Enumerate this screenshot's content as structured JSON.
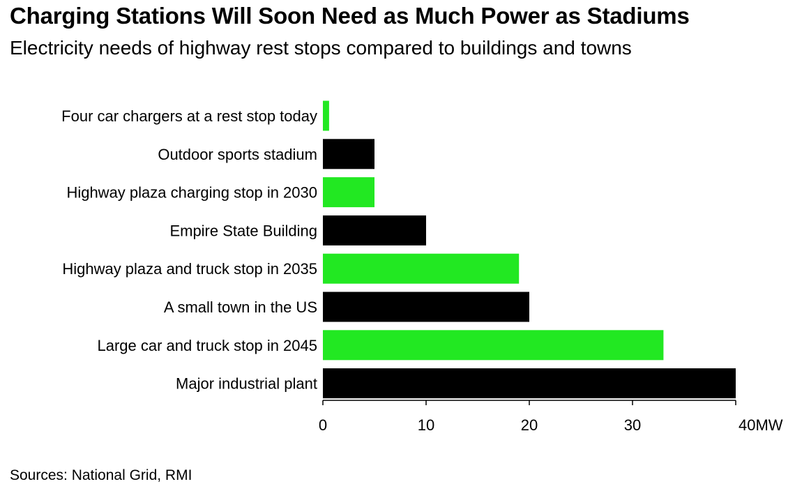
{
  "header": {
    "title": "Charging Stations Will Soon Need as Much Power as Stadiums",
    "subtitle": "Electricity needs of highway rest stops compared to buildings and towns"
  },
  "footer": {
    "source": "Sources: National Grid, RMI"
  },
  "colors": {
    "green": "#22e822",
    "black": "#000000"
  },
  "chart_data": {
    "type": "bar",
    "orientation": "horizontal",
    "title": "Charging Stations Will Soon Need as Much Power as Stadiums",
    "subtitle": "Electricity needs of highway rest stops compared to buildings and towns",
    "categories": [
      "Four car chargers at a rest stop today",
      "Outdoor sports stadium",
      "Highway plaza charging stop in 2030",
      "Empire State Building",
      "Highway plaza and truck stop in 2035",
      "A small town in the US",
      "Large car and truck stop in 2045",
      "Major industrial plant"
    ],
    "values": [
      0.6,
      5,
      5,
      10,
      19,
      20,
      33,
      40
    ],
    "bar_colors": [
      "#22e822",
      "#000000",
      "#22e822",
      "#000000",
      "#22e822",
      "#000000",
      "#22e822",
      "#000000"
    ],
    "xlim": [
      0,
      40
    ],
    "ticks": [
      0,
      10,
      20,
      30,
      40
    ],
    "tick_labels": [
      "0",
      "10",
      "20",
      "30",
      "40MW"
    ],
    "grid": false,
    "legend": "none"
  }
}
